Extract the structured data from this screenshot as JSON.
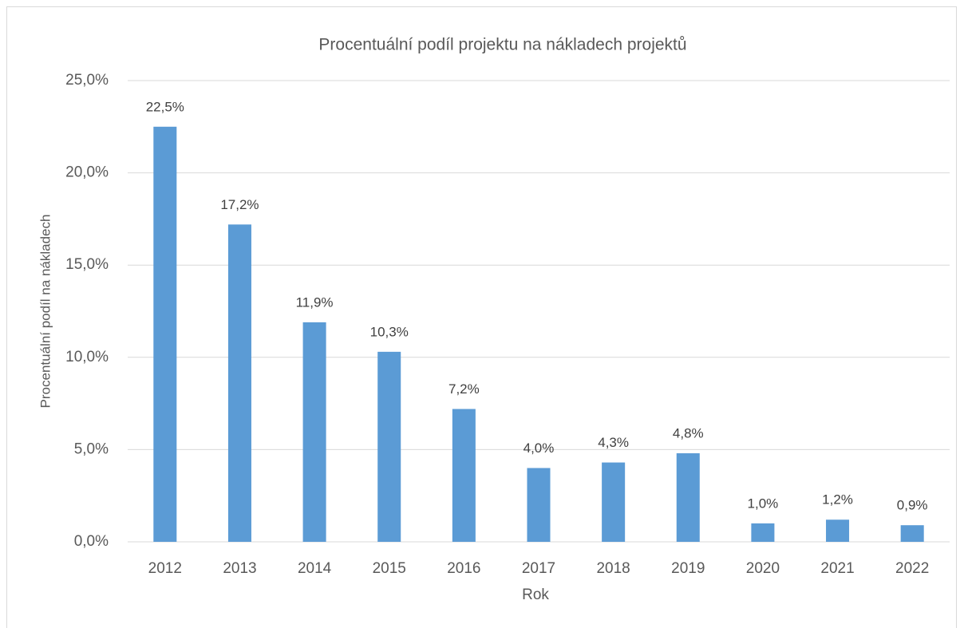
{
  "chart_data": {
    "type": "bar",
    "title": "Procentuální podíl projektu na nákladech projektů",
    "x_label": "Rok",
    "y_label": "Procentuální podíl na nákladech",
    "categories": [
      "2012",
      "2013",
      "2014",
      "2015",
      "2016",
      "2017",
      "2018",
      "2019",
      "2020",
      "2021",
      "2022"
    ],
    "values": [
      22.5,
      17.2,
      11.9,
      10.3,
      7.2,
      4.0,
      4.3,
      4.8,
      1.0,
      1.2,
      0.9
    ],
    "value_labels": [
      "22,5%",
      "17,2%",
      "11,9%",
      "10,3%",
      "7,2%",
      "4,0%",
      "4,3%",
      "4,8%",
      "1,0%",
      "1,2%",
      "0,9%"
    ],
    "color": "#5b9bd5",
    "ylim": [
      0,
      25
    ],
    "yticks": [
      {
        "value": 0,
        "label": "0,0%"
      },
      {
        "value": 5,
        "label": "5,0%"
      },
      {
        "value": 10,
        "label": "10,0%"
      },
      {
        "value": 15,
        "label": "15,0%"
      },
      {
        "value": 20,
        "label": "20,0%"
      },
      {
        "value": 25,
        "label": "25,0%"
      }
    ],
    "grid": true
  }
}
